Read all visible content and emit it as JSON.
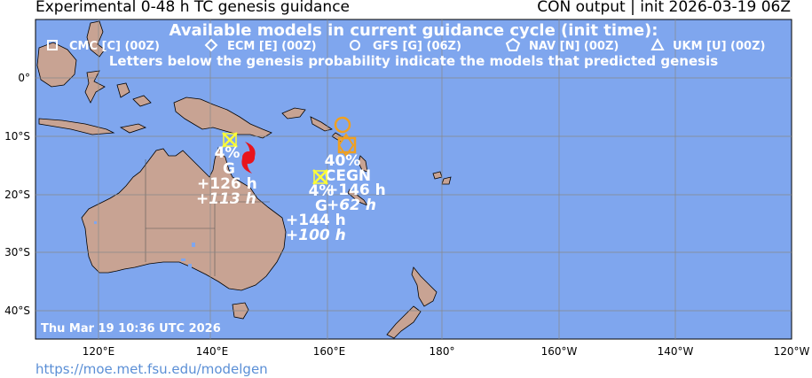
{
  "header": {
    "title_left": "Experimental 0-48 h TC genesis guidance",
    "title_right": "CON output | init 2026-03-19 06Z"
  },
  "legend": {
    "heading": "Available models in current guidance cycle (init time):",
    "items": [
      {
        "symbol": "square",
        "label": "CMC [C] (00Z)"
      },
      {
        "symbol": "diamond",
        "label": "ECM [E] (00Z)"
      },
      {
        "symbol": "circle",
        "label": "GFS [G] (06Z)"
      },
      {
        "symbol": "pentagon",
        "label": "NAV [N] (00Z)"
      },
      {
        "symbol": "triangle",
        "label": "UKM [U] (00Z)"
      }
    ],
    "note": "Letters below the genesis probability indicate the models that predicted genesis"
  },
  "axes": {
    "lat_labels": [
      "0°",
      "10°S",
      "20°S",
      "30°S",
      "40°S"
    ],
    "lon_labels": [
      "120°E",
      "140°E",
      "160°E",
      "180°",
      "160°W",
      "140°W",
      "120°W"
    ]
  },
  "markers": [
    {
      "id": "west",
      "probability": "4%",
      "models": "G",
      "lead_text": "+126 h",
      "lead_italic": "+113 h",
      "color": "#ffff33"
    },
    {
      "id": "east",
      "probability": "40%",
      "models": "CEGN",
      "lead_text": "+146 h",
      "lead_italic": "+62 h",
      "color": "#f0a020"
    },
    {
      "id": "south",
      "probability": "4%",
      "models": "G",
      "lead_text": "+144 h",
      "lead_italic": "+100 h",
      "color": "#ffff33"
    }
  ],
  "timestamp": "Thu Mar 19 10:36 UTC 2026",
  "footer_url": "https://moe.met.fsu.edu/modelgen",
  "colors": {
    "ocean": "#7fa6ee",
    "land": "#c8a393",
    "grid": "#888888",
    "storm": "#e8141c",
    "yellow_marker": "#ffff33",
    "orange_marker": "#f0a020"
  }
}
